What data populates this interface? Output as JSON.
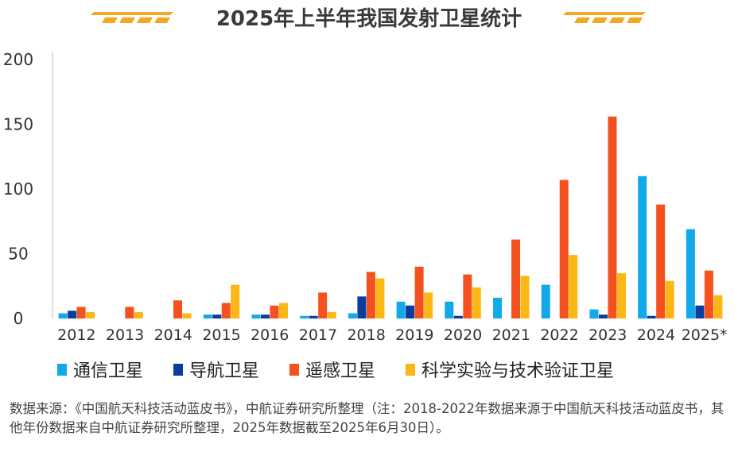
{
  "title": "2025年上半年我国发射卫星统计",
  "colors": {
    "deco_orange": "#f5a623",
    "axis": "#bfbfbf"
  },
  "chart_data": {
    "type": "bar",
    "title": "2025年上半年我国发射卫星统计",
    "xlabel": "",
    "ylabel": "",
    "ylim": [
      0,
      200
    ],
    "yticks": [
      0,
      50,
      100,
      150,
      200
    ],
    "grid": false,
    "legend_position": "bottom",
    "categories": [
      "2012",
      "2013",
      "2014",
      "2015",
      "2016",
      "2017",
      "2018",
      "2019",
      "2020",
      "2021",
      "2022",
      "2023",
      "2024",
      "2025*"
    ],
    "series": [
      {
        "name": "通信卫星",
        "color": "#11a9e8",
        "values": [
          4,
          0,
          0,
          3,
          3,
          2,
          4,
          13,
          13,
          16,
          26,
          7,
          110,
          69
        ]
      },
      {
        "name": "导航卫星",
        "color": "#0b3d9c",
        "values": [
          6,
          0,
          0,
          3,
          3,
          2,
          17,
          10,
          2,
          0,
          0,
          3,
          2,
          10
        ]
      },
      {
        "name": "遥感卫星",
        "color": "#f4511e",
        "values": [
          9,
          9,
          14,
          12,
          10,
          20,
          36,
          40,
          34,
          61,
          107,
          156,
          88,
          37
        ]
      },
      {
        "name": "科学实验与技术验证卫星",
        "color": "#fbb715",
        "values": [
          5,
          5,
          4,
          26,
          12,
          5,
          31,
          20,
          24,
          33,
          49,
          35,
          29,
          18
        ]
      }
    ]
  },
  "source_note": "数据来源：《中国航天科技活动蓝皮书》，中航证券研究所整理（注：2018-2022年数据来源于中国航天科技活动蓝皮书，其他年份数据来自中航证券研究所整理，2025年数据截至2025年6月30日）。"
}
